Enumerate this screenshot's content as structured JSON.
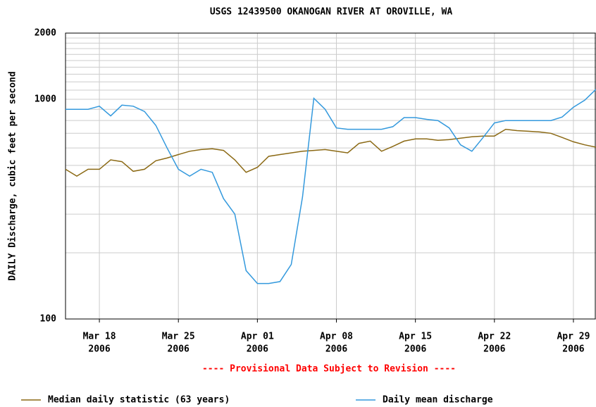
{
  "chart_data": {
    "type": "line",
    "title": "USGS 12439500 OKANOGAN RIVER AT OROVILLE, WA",
    "y_label": "DAILY Discharge, cubic feet per second",
    "annotation": "---- Provisional Data Subject to Revision ----",
    "log_scale": true,
    "grid": true,
    "x": [
      "2006-03-15",
      "2006-03-16",
      "2006-03-17",
      "2006-03-18",
      "2006-03-19",
      "2006-03-20",
      "2006-03-21",
      "2006-03-22",
      "2006-03-23",
      "2006-03-24",
      "2006-03-25",
      "2006-03-26",
      "2006-03-27",
      "2006-03-28",
      "2006-03-29",
      "2006-03-30",
      "2006-03-31",
      "2006-04-01",
      "2006-04-02",
      "2006-04-03",
      "2006-04-04",
      "2006-04-05",
      "2006-04-06",
      "2006-04-07",
      "2006-04-08",
      "2006-04-09",
      "2006-04-10",
      "2006-04-11",
      "2006-04-12",
      "2006-04-13",
      "2006-04-14",
      "2006-04-15",
      "2006-04-16",
      "2006-04-17",
      "2006-04-18",
      "2006-04-19",
      "2006-04-20",
      "2006-04-21",
      "2006-04-22",
      "2006-04-23",
      "2006-04-24",
      "2006-04-25",
      "2006-04-26",
      "2006-04-27",
      "2006-04-28",
      "2006-04-29",
      "2006-04-30",
      "2006-05-01"
    ],
    "xlim": [
      "2006-03-15",
      "2006-05-01"
    ],
    "xticks": [
      {
        "value": "2006-03-18",
        "label": "Mar 18",
        "year": "2006"
      },
      {
        "value": "2006-03-25",
        "label": "Mar 25",
        "year": "2006"
      },
      {
        "value": "2006-04-01",
        "label": "Apr 01",
        "year": "2006"
      },
      {
        "value": "2006-04-08",
        "label": "Apr 08",
        "year": "2006"
      },
      {
        "value": "2006-04-15",
        "label": "Apr 15",
        "year": "2006"
      },
      {
        "value": "2006-04-22",
        "label": "Apr 22",
        "year": "2006"
      },
      {
        "value": "2006-04-29",
        "label": "Apr 29",
        "year": "2006"
      }
    ],
    "ylim": [
      100,
      2000
    ],
    "yticks": [
      100,
      1000,
      2000
    ],
    "minor_yticks": [
      200,
      300,
      400,
      500,
      600,
      700,
      800,
      900,
      1100,
      1200,
      1300,
      1400,
      1500,
      1600,
      1700,
      1800,
      1900
    ],
    "series": [
      {
        "name": "Median daily statistic (63 years)",
        "color": "#8b6914",
        "values": [
          480,
          447,
          480,
          480,
          530,
          520,
          470,
          480,
          525,
          540,
          560,
          580,
          590,
          595,
          585,
          530,
          465,
          490,
          550,
          560,
          570,
          580,
          585,
          590,
          580,
          570,
          630,
          645,
          580,
          610,
          645,
          660,
          660,
          650,
          655,
          665,
          675,
          680,
          680,
          730,
          720,
          715,
          710,
          700,
          670,
          640,
          620,
          605
        ]
      },
      {
        "name": "Daily mean discharge",
        "color": "#3399dd",
        "values": [
          900,
          900,
          900,
          930,
          840,
          940,
          930,
          880,
          760,
          600,
          480,
          447,
          480,
          465,
          353,
          300,
          166,
          145,
          145,
          148,
          177,
          359,
          1010,
          900,
          740,
          730,
          730,
          730,
          730,
          750,
          825,
          825,
          810,
          800,
          740,
          620,
          580,
          670,
          780,
          800,
          800,
          800,
          800,
          800,
          830,
          920,
          990,
          1110
        ]
      }
    ]
  }
}
